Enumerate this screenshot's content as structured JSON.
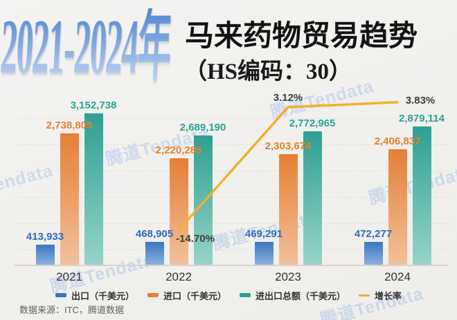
{
  "header": {
    "years_title": "2021-2024年",
    "main_title": "马来药物贸易趋势",
    "sub_title": "（HS编码：30）"
  },
  "watermark_text": "腾道Tendata",
  "footer": {
    "source": "数据来源：ITC，腾道数据"
  },
  "colors": {
    "background": "#f2f1ee",
    "title_gradient_top": "#4f87d2",
    "title_gradient_bottom": "#c8d9f0",
    "axis": "#d6d3ce",
    "percent_label": "#3d3d3d",
    "watermark": "#7aa2e4"
  },
  "chart_data": {
    "type": "bar",
    "title": "2021-2024年马来药物贸易趋势（HS编码：30）",
    "categories": [
      "2021",
      "2022",
      "2023",
      "2024"
    ],
    "series": [
      {
        "name": "出口（千美元）",
        "type": "bar",
        "color_top": "#3a76c2",
        "color_bottom": "#8ab1de",
        "label_color": "#2e6cbd",
        "values": [
          413933,
          468905,
          469291,
          472277
        ],
        "value_labels": [
          "413,933",
          "468,905",
          "469,291",
          "472,277"
        ]
      },
      {
        "name": "进口（千美元）",
        "type": "bar",
        "color_top": "#e57f35",
        "color_bottom": "#f2c09b",
        "label_color": "#e6802f",
        "values": [
          2738805,
          2220285,
          2303674,
          2406837
        ],
        "value_labels": [
          "2,738,805",
          "2,220,285",
          "2,303,674",
          "2,406,837"
        ]
      },
      {
        "name": "进出口总额（千美元）",
        "type": "bar",
        "color_top": "#2da092",
        "color_bottom": "#97d3c8",
        "label_color": "#2aa294",
        "values": [
          3152738,
          2689190,
          2772965,
          2879114
        ],
        "value_labels": [
          "3,152,738",
          "2,689,190",
          "2,772,965",
          "2,879,114"
        ]
      },
      {
        "name": "增长率",
        "type": "line",
        "color": "#f0b02c",
        "label_color": "#3d3d3d",
        "values": [
          null,
          -14.7,
          3.12,
          3.83
        ],
        "value_labels": [
          "",
          "-14.70%",
          "3.12%",
          "3.83%"
        ]
      }
    ],
    "ylim": [
      0,
      3300000
    ],
    "grid": "dashed-horizontal",
    "legend_position": "bottom",
    "value_labels_shown": true
  }
}
